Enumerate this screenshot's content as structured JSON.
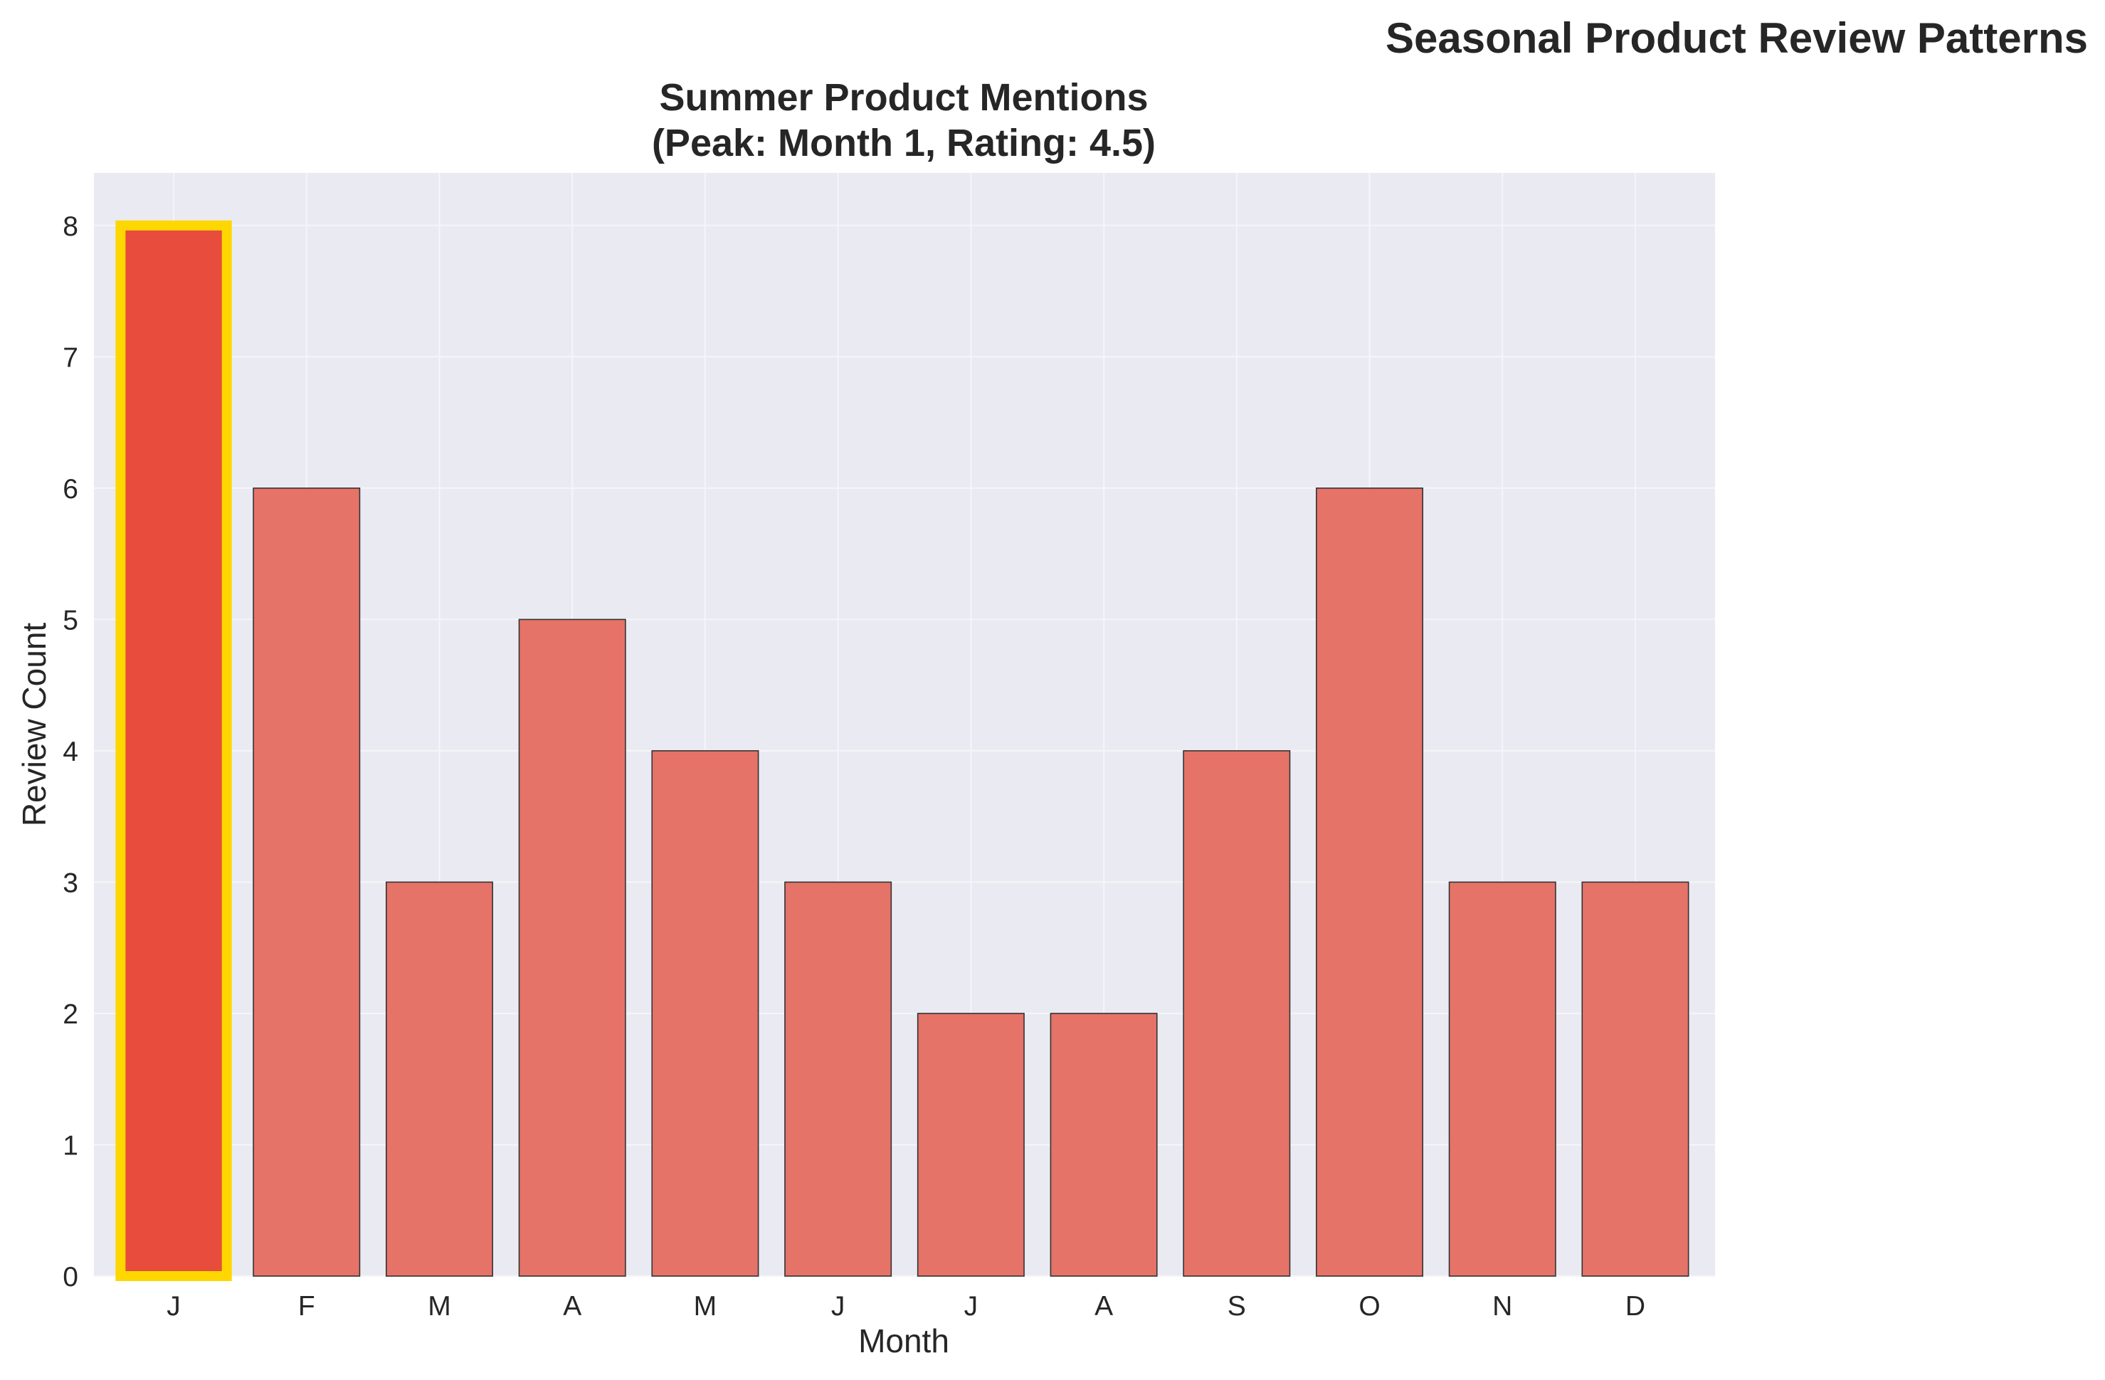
{
  "figure": {
    "suptitle": "Seasonal Product Review Patterns"
  },
  "chart_data": {
    "type": "bar",
    "title_line1": "Summer Product Mentions",
    "title_line2": "(Peak: Month 1, Rating: 4.5)",
    "xlabel": "Month",
    "ylabel": "Review Count",
    "categories": [
      "J",
      "F",
      "M",
      "A",
      "M",
      "J",
      "J",
      "A",
      "S",
      "O",
      "N",
      "D"
    ],
    "values": [
      8,
      6,
      3,
      5,
      4,
      3,
      2,
      2,
      4,
      6,
      3,
      3
    ],
    "highlight_index": 0,
    "ylim": [
      0,
      8.4
    ],
    "yticks": [
      0,
      1,
      2,
      3,
      4,
      5,
      6,
      7,
      8
    ],
    "grid": true,
    "colors": {
      "bar": "#e57368",
      "bar_highlight": "#e74c3c",
      "highlight_edge": "#ffd700",
      "bar_edge": "#333333",
      "plot_background": "#eaeaf2",
      "grid": "#f5f5f9"
    }
  }
}
